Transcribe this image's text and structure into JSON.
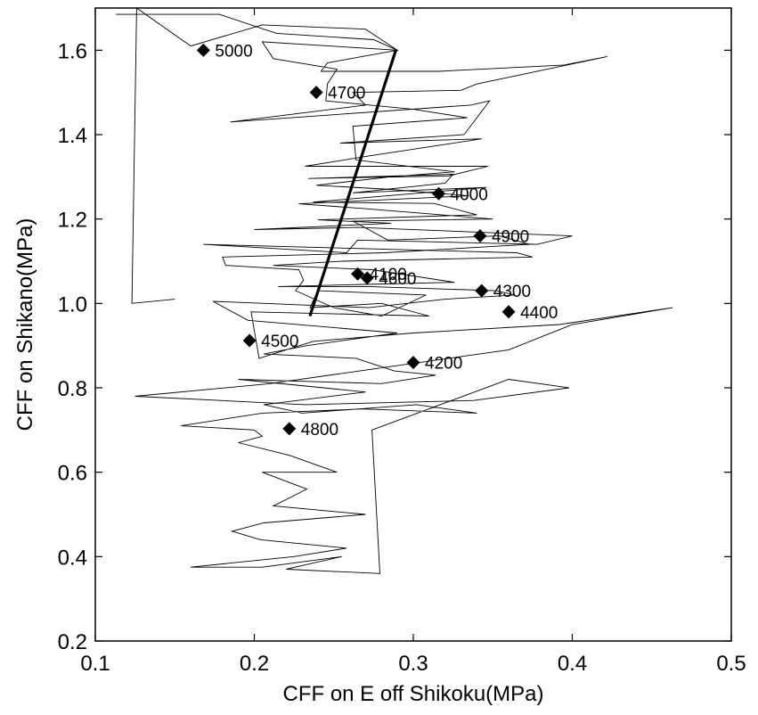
{
  "chart_data": {
    "type": "scatter",
    "title": "",
    "xlabel": "CFF on E off Shikoku(MPa)",
    "ylabel": "CFF on Shikano(MPa)",
    "xlim": [
      0.1,
      0.5
    ],
    "ylim": [
      0.2,
      1.7
    ],
    "xticks": [
      0.1,
      0.2,
      0.3,
      0.4,
      0.5
    ],
    "xtick_labels": [
      "0.1",
      "0.2",
      "0.3",
      "0.4",
      "0.5"
    ],
    "yticks": [
      0.2,
      0.4,
      0.6,
      0.8,
      1.0,
      1.2,
      1.4,
      1.6
    ],
    "ytick_labels": [
      "0.2",
      "0.4",
      "0.6",
      "0.8",
      "1.0",
      "1.2",
      "1.4",
      "1.6"
    ],
    "grid": false,
    "trajectory": [
      [
        0.113,
        1.685
      ],
      [
        0.178,
        1.685
      ],
      [
        0.214,
        1.64
      ],
      [
        0.275,
        1.625
      ],
      [
        0.29,
        1.6
      ],
      [
        0.246,
        1.57
      ],
      [
        0.242,
        1.55
      ],
      [
        0.316,
        1.55
      ],
      [
        0.395,
        1.565
      ],
      [
        0.422,
        1.585
      ],
      [
        0.34,
        1.52
      ],
      [
        0.33,
        1.505
      ],
      [
        0.262,
        1.5
      ],
      [
        0.27,
        1.47
      ],
      [
        0.185,
        1.43
      ],
      [
        0.336,
        1.47
      ],
      [
        0.348,
        1.48
      ],
      [
        0.332,
        1.4
      ],
      [
        0.254,
        1.38
      ],
      [
        0.343,
        1.39
      ],
      [
        0.273,
        1.35
      ],
      [
        0.232,
        1.325
      ],
      [
        0.347,
        1.325
      ],
      [
        0.322,
        1.302
      ],
      [
        0.234,
        1.296
      ],
      [
        0.325,
        1.306
      ],
      [
        0.32,
        1.285
      ],
      [
        0.262,
        1.262
      ],
      [
        0.346,
        1.275
      ],
      [
        0.237,
        1.24
      ],
      [
        0.313,
        1.237
      ],
      [
        0.34,
        1.21
      ],
      [
        0.24,
        1.198
      ],
      [
        0.286,
        1.19
      ],
      [
        0.2,
        1.175
      ],
      [
        0.265,
        1.18
      ],
      [
        0.4,
        1.16
      ],
      [
        0.378,
        1.14
      ],
      [
        0.265,
        1.15
      ],
      [
        0.258,
        1.12
      ],
      [
        0.168,
        1.14
      ],
      [
        0.365,
        1.12
      ],
      [
        0.375,
        1.11
      ],
      [
        0.255,
        1.1
      ],
      [
        0.212,
        1.09
      ],
      [
        0.274,
        1.08
      ],
      [
        0.326,
        1.05
      ],
      [
        0.27,
        1.045
      ],
      [
        0.215,
        1.04
      ],
      [
        0.272,
        1.04
      ],
      [
        0.352,
        1.03
      ],
      [
        0.364,
        1.02
      ],
      [
        0.32,
        1.01
      ],
      [
        0.272,
        0.99
      ],
      [
        0.174,
        1.005
      ],
      [
        0.196,
        0.96
      ],
      [
        0.29,
        0.93
      ],
      [
        0.233,
        0.9
      ],
      [
        0.206,
        0.88
      ],
      [
        0.264,
        0.87
      ],
      [
        0.288,
        0.84
      ],
      [
        0.314,
        0.83
      ],
      [
        0.28,
        0.81
      ],
      [
        0.19,
        0.82
      ],
      [
        0.27,
        0.79
      ],
      [
        0.206,
        0.76
      ],
      [
        0.23,
        0.74
      ],
      [
        0.302,
        0.76
      ],
      [
        0.34,
        0.74
      ],
      [
        0.268,
        0.75
      ],
      [
        0.205,
        0.74
      ],
      [
        0.154,
        0.71
      ],
      [
        0.2,
        0.7
      ],
      [
        0.205,
        0.685
      ],
      [
        0.19,
        0.67
      ],
      [
        0.222,
        0.64
      ],
      [
        0.252,
        0.6
      ],
      [
        0.205,
        0.6
      ],
      [
        0.233,
        0.56
      ],
      [
        0.212,
        0.52
      ],
      [
        0.27,
        0.5
      ],
      [
        0.206,
        0.48
      ],
      [
        0.186,
        0.46
      ],
      [
        0.204,
        0.44
      ],
      [
        0.258,
        0.42
      ],
      [
        0.225,
        0.4
      ],
      [
        0.16,
        0.375
      ],
      [
        0.205,
        0.375
      ],
      [
        0.255,
        0.4
      ],
      [
        0.22,
        0.37
      ],
      [
        0.279,
        0.36
      ],
      [
        0.274,
        0.7
      ],
      [
        0.36,
        0.82
      ],
      [
        0.398,
        0.8
      ],
      [
        0.338,
        0.77
      ],
      [
        0.232,
        0.76
      ],
      [
        0.125,
        0.78
      ],
      [
        0.21,
        0.81
      ],
      [
        0.285,
        0.85
      ],
      [
        0.36,
        0.89
      ],
      [
        0.4,
        0.95
      ],
      [
        0.463,
        0.99
      ],
      [
        0.392,
        0.95
      ],
      [
        0.3,
        0.93
      ],
      [
        0.237,
        0.91
      ],
      [
        0.203,
        0.87
      ],
      [
        0.198,
        0.98
      ],
      [
        0.31,
        0.97
      ],
      [
        0.28,
        1.0
      ],
      [
        0.235,
        0.99
      ],
      [
        0.24,
        1.03
      ],
      [
        0.308,
        1.02
      ],
      [
        0.28,
        0.97
      ],
      [
        0.25,
        0.99
      ],
      [
        0.226,
        1.03
      ],
      [
        0.231,
        1.055
      ],
      [
        0.228,
        1.08
      ],
      [
        0.182,
        1.09
      ],
      [
        0.18,
        1.11
      ],
      [
        0.282,
        1.12
      ],
      [
        0.373,
        1.14
      ],
      [
        0.354,
        1.16
      ],
      [
        0.284,
        1.15
      ],
      [
        0.262,
        1.195
      ],
      [
        0.35,
        1.2
      ],
      [
        0.268,
        1.225
      ],
      [
        0.228,
        1.236
      ],
      [
        0.335,
        1.255
      ],
      [
        0.286,
        1.27
      ],
      [
        0.239,
        1.28
      ],
      [
        0.286,
        1.3
      ],
      [
        0.326,
        1.312
      ],
      [
        0.264,
        1.34
      ],
      [
        0.262,
        1.42
      ],
      [
        0.334,
        1.44
      ],
      [
        0.3,
        1.46
      ],
      [
        0.245,
        1.48
      ],
      [
        0.246,
        1.52
      ],
      [
        0.252,
        1.555
      ],
      [
        0.212,
        1.58
      ],
      [
        0.205,
        1.62
      ],
      [
        0.29,
        1.6
      ],
      [
        0.27,
        1.65
      ],
      [
        0.205,
        1.66
      ],
      [
        0.16,
        1.61
      ],
      [
        0.126,
        1.7
      ],
      [
        0.123,
        1.0
      ],
      [
        0.15,
        1.01
      ]
    ],
    "trend_line": [
      [
        0.235,
        0.97
      ],
      [
        0.289,
        1.6
      ]
    ],
    "points": [
      {
        "label": "5000",
        "x": 0.168,
        "y": 1.6
      },
      {
        "label": "4700",
        "x": 0.239,
        "y": 1.5
      },
      {
        "label": "4000",
        "x": 0.316,
        "y": 1.26
      },
      {
        "label": "4900",
        "x": 0.342,
        "y": 1.16
      },
      {
        "label": "4100",
        "x": 0.265,
        "y": 1.07
      },
      {
        "label": "4600",
        "x": 0.271,
        "y": 1.06
      },
      {
        "label": "4300",
        "x": 0.343,
        "y": 1.03
      },
      {
        "label": "4400",
        "x": 0.36,
        "y": 0.98
      },
      {
        "label": "4500",
        "x": 0.197,
        "y": 0.912
      },
      {
        "label": "4200",
        "x": 0.3,
        "y": 0.86
      },
      {
        "label": "4800",
        "x": 0.222,
        "y": 0.703
      }
    ]
  }
}
